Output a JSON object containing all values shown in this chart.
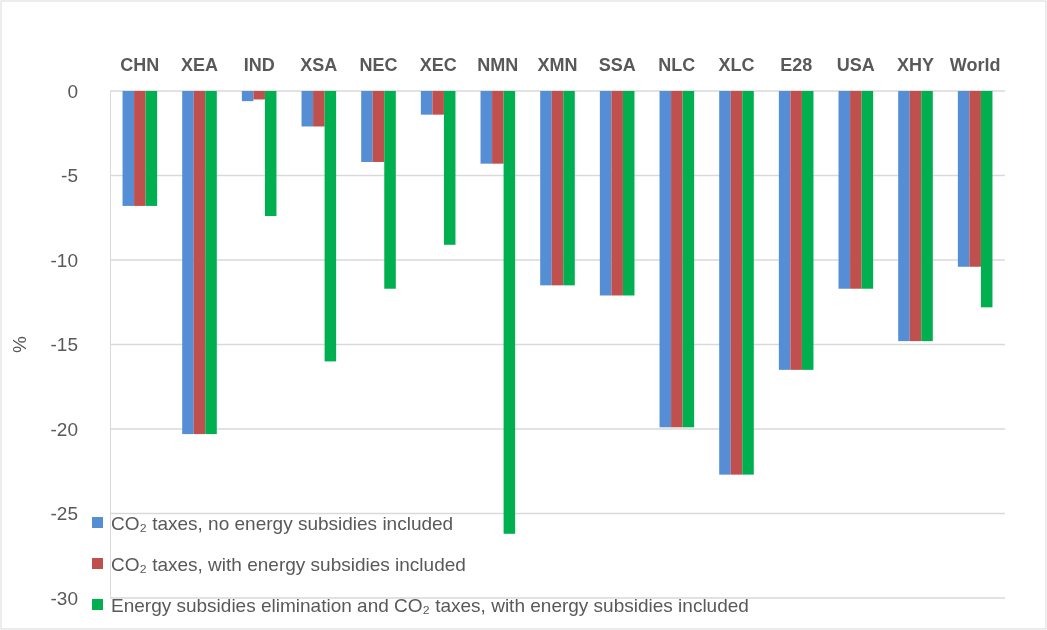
{
  "chart_data": {
    "type": "bar",
    "ylabel": "%",
    "categories": [
      "CHN",
      "XEA",
      "IND",
      "XSA",
      "NEC",
      "XEC",
      "NMN",
      "XMN",
      "SSA",
      "NLC",
      "XLC",
      "E28",
      "USA",
      "XHY",
      "World"
    ],
    "series": [
      {
        "name": "CO₂ taxes, no energy subsidies included",
        "color": "#558ed5",
        "values": [
          -6.8,
          -20.3,
          -0.6,
          -2.1,
          -4.2,
          -1.4,
          -4.3,
          -11.5,
          -12.1,
          -19.9,
          -22.7,
          -16.5,
          -11.7,
          -14.8,
          -10.4
        ]
      },
      {
        "name": "CO₂ taxes, with energy subsidies included",
        "color": "#c0504d",
        "values": [
          -6.8,
          -20.3,
          -0.5,
          -2.1,
          -4.2,
          -1.4,
          -4.3,
          -11.5,
          -12.1,
          -19.9,
          -22.7,
          -16.5,
          -11.7,
          -14.8,
          -10.4
        ]
      },
      {
        "name": "Energy subsidies elimination and CO₂ taxes, with energy subsidies included",
        "color": "#00b050",
        "values": [
          -6.8,
          -20.3,
          -7.4,
          -16.0,
          -11.7,
          -9.1,
          -26.2,
          -11.5,
          -12.1,
          -19.9,
          -22.7,
          -16.5,
          -11.7,
          -14.8,
          -12.8
        ]
      }
    ],
    "ylim": [
      -30,
      0
    ],
    "yticks": [
      0,
      -5,
      -10,
      -15,
      -20,
      -25,
      -30
    ],
    "grid": "y",
    "legend": "bottom left"
  }
}
